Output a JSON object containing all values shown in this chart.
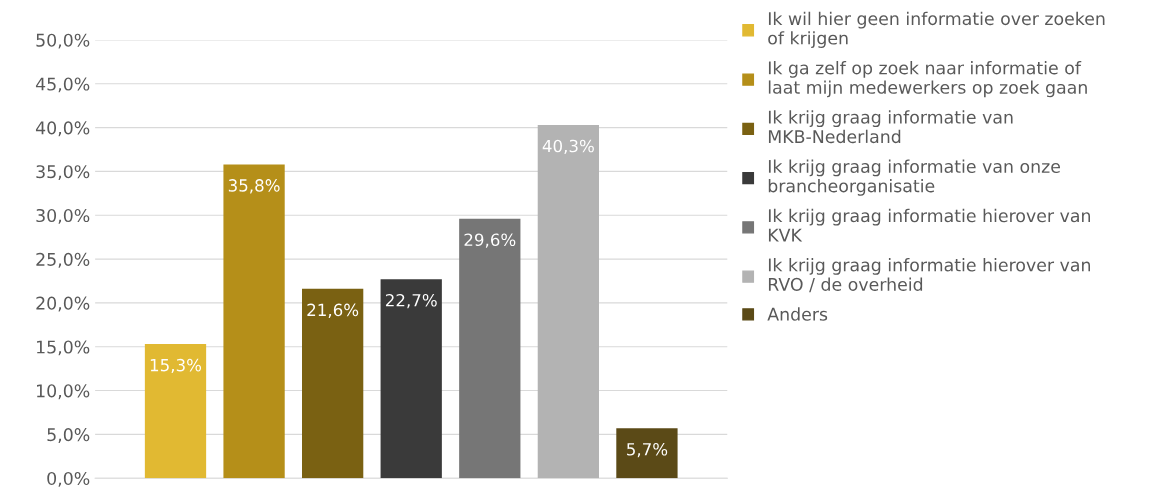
{
  "chart_data": {
    "type": "bar",
    "categories": [
      null
    ],
    "series": [
      {
        "name": "Ik wil hier geen informatie over zoeken of krijgen",
        "color": "#e1b932",
        "values": [
          15.3
        ],
        "value_labels": [
          "15,3%"
        ]
      },
      {
        "name": "Ik ga zelf op zoek naar informatie of laat mijn medewerkers op zoek gaan",
        "color": "#b58f19",
        "values": [
          35.8
        ],
        "value_labels": [
          "35,8%"
        ]
      },
      {
        "name": "Ik krijg graag informatie van MKB-Nederland",
        "color": "#7a6112",
        "values": [
          21.6
        ],
        "value_labels": [
          "21,6%"
        ]
      },
      {
        "name": "Ik krijg graag informatie van onze brancheorganisatie",
        "color": "#3a3a3a",
        "values": [
          22.7
        ],
        "value_labels": [
          "22,7%"
        ]
      },
      {
        "name": "Ik krijg graag informatie hierover van KVK",
        "color": "#767676",
        "values": [
          29.6
        ],
        "value_labels": [
          "29,6%"
        ]
      },
      {
        "name": "Ik krijg graag informatie hierover van RVO / de overheid",
        "color": "#b3b3b3",
        "values": [
          40.3
        ],
        "value_labels": [
          "40,3%"
        ]
      },
      {
        "name": "Anders",
        "color": "#5b4a17",
        "values": [
          5.7
        ],
        "value_labels": [
          "5,7%"
        ]
      }
    ],
    "ylim": [
      0,
      50
    ],
    "yticks": [
      {
        "value": 0,
        "label": "0,0%"
      },
      {
        "value": 5,
        "label": "5,0%"
      },
      {
        "value": 10,
        "label": "10,0%"
      },
      {
        "value": 15,
        "label": "15,0%"
      },
      {
        "value": 20,
        "label": "20,0%"
      },
      {
        "value": 25,
        "label": "25,0%"
      },
      {
        "value": 30,
        "label": "30,0%"
      },
      {
        "value": 35,
        "label": "35,0%"
      },
      {
        "value": 40,
        "label": "40,0%"
      },
      {
        "value": 45,
        "label": "45,0%"
      },
      {
        "value": 50,
        "label": "50,0%"
      }
    ],
    "grid": "y",
    "legend": "right",
    "tick_labels": "y"
  }
}
